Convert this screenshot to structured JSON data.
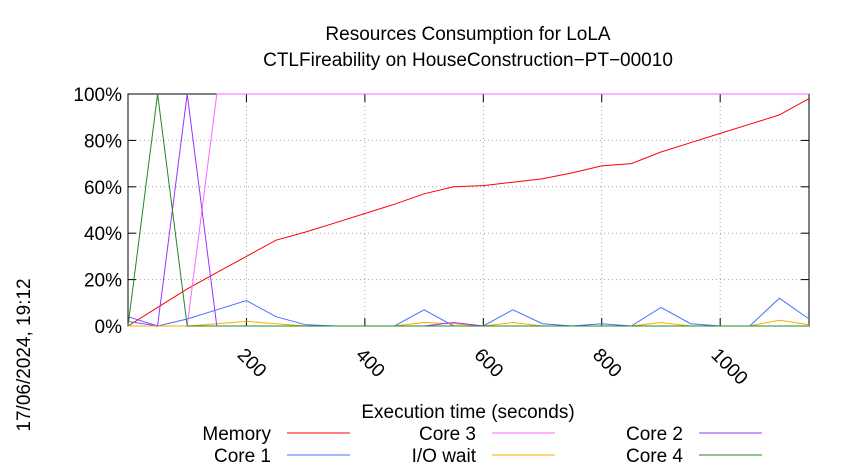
{
  "chart_data": {
    "type": "line",
    "title": "Resources Consumption for LoLA",
    "subtitle": "CTLFireability on HouseConstruction−PT−00010",
    "xlabel": "Execution time (seconds)",
    "ylabel": "",
    "side_label": "17/06/2024, 19:12",
    "xlim": [
      0,
      1150
    ],
    "ylim": [
      0,
      100
    ],
    "x_ticks": [
      200,
      400,
      600,
      800,
      1000
    ],
    "y_ticks": [
      0,
      20,
      40,
      60,
      80,
      100
    ],
    "y_tick_labels": [
      "0%",
      "20%",
      "40%",
      "60%",
      "80%",
      "100%"
    ],
    "grid": true,
    "legend_position": "bottom",
    "series": [
      {
        "name": "Memory",
        "color": "#ff0000",
        "points": [
          [
            0,
            0
          ],
          [
            50,
            8
          ],
          [
            100,
            16
          ],
          [
            150,
            23
          ],
          [
            200,
            30
          ],
          [
            250,
            37
          ],
          [
            300,
            40.5
          ],
          [
            350,
            44.5
          ],
          [
            400,
            48.5
          ],
          [
            450,
            52.5
          ],
          [
            500,
            57
          ],
          [
            550,
            60
          ],
          [
            600,
            60.5
          ],
          [
            650,
            62
          ],
          [
            700,
            63.5
          ],
          [
            750,
            66
          ],
          [
            800,
            69
          ],
          [
            850,
            70
          ],
          [
            900,
            75
          ],
          [
            950,
            79
          ],
          [
            1000,
            83
          ],
          [
            1050,
            87
          ],
          [
            1100,
            91
          ],
          [
            1150,
            98
          ]
        ]
      },
      {
        "name": "Core 1",
        "color": "#4472ff",
        "points": [
          [
            0,
            2
          ],
          [
            50,
            0
          ],
          [
            100,
            3
          ],
          [
            150,
            7
          ],
          [
            200,
            11
          ],
          [
            250,
            4
          ],
          [
            300,
            0.5
          ],
          [
            350,
            0
          ],
          [
            400,
            0
          ],
          [
            450,
            0
          ],
          [
            500,
            7
          ],
          [
            550,
            0
          ],
          [
            600,
            0
          ],
          [
            650,
            7
          ],
          [
            700,
            1
          ],
          [
            750,
            0
          ],
          [
            800,
            1
          ],
          [
            850,
            0
          ],
          [
            900,
            8
          ],
          [
            950,
            1
          ],
          [
            1000,
            0
          ],
          [
            1050,
            0
          ],
          [
            1100,
            12
          ],
          [
            1150,
            3
          ]
        ]
      },
      {
        "name": "Core 3",
        "color": "#ff66ff",
        "points": [
          [
            0,
            0
          ],
          [
            50,
            0
          ],
          [
            100,
            0
          ],
          [
            150,
            100
          ],
          [
            200,
            100
          ],
          [
            250,
            100
          ],
          [
            300,
            100
          ],
          [
            350,
            100
          ],
          [
            400,
            100
          ],
          [
            450,
            100
          ],
          [
            500,
            100
          ],
          [
            550,
            100
          ],
          [
            600,
            100
          ],
          [
            650,
            100
          ],
          [
            700,
            100
          ],
          [
            750,
            100
          ],
          [
            800,
            100
          ],
          [
            850,
            100
          ],
          [
            900,
            100
          ],
          [
            950,
            100
          ],
          [
            1000,
            100
          ],
          [
            1050,
            100
          ],
          [
            1100,
            100
          ],
          [
            1150,
            100
          ]
        ]
      },
      {
        "name": "I/O wait",
        "color": "#ffaa00",
        "points": [
          [
            0,
            0
          ],
          [
            50,
            0
          ],
          [
            100,
            0
          ],
          [
            150,
            1
          ],
          [
            200,
            2
          ],
          [
            250,
            1
          ],
          [
            300,
            0
          ],
          [
            350,
            0
          ],
          [
            400,
            0
          ],
          [
            450,
            0
          ],
          [
            500,
            1.5
          ],
          [
            550,
            1
          ],
          [
            600,
            0
          ],
          [
            650,
            1.5
          ],
          [
            700,
            0
          ],
          [
            750,
            0
          ],
          [
            800,
            0
          ],
          [
            850,
            0
          ],
          [
            900,
            1.5
          ],
          [
            950,
            0
          ],
          [
            1000,
            0
          ],
          [
            1050,
            0
          ],
          [
            1100,
            2.5
          ],
          [
            1150,
            0.5
          ]
        ]
      },
      {
        "name": "Core 2",
        "color": "#9933ff",
        "points": [
          [
            0,
            4
          ],
          [
            50,
            0
          ],
          [
            100,
            100
          ],
          [
            150,
            0
          ],
          [
            200,
            0
          ],
          [
            250,
            0
          ],
          [
            300,
            0
          ],
          [
            350,
            0
          ],
          [
            400,
            0
          ],
          [
            450,
            0
          ],
          [
            500,
            0
          ],
          [
            550,
            1.5
          ],
          [
            600,
            0
          ],
          [
            650,
            0
          ],
          [
            700,
            0
          ],
          [
            750,
            0
          ],
          [
            800,
            0
          ],
          [
            850,
            0
          ],
          [
            900,
            0
          ],
          [
            950,
            0
          ],
          [
            1000,
            0
          ],
          [
            1050,
            0
          ],
          [
            1100,
            0
          ],
          [
            1150,
            0
          ]
        ]
      },
      {
        "name": "Core 4",
        "color": "#228822",
        "points": [
          [
            0,
            0
          ],
          [
            50,
            100
          ],
          [
            100,
            0
          ],
          [
            150,
            0
          ],
          [
            200,
            0
          ],
          [
            250,
            0
          ],
          [
            300,
            0
          ],
          [
            350,
            0
          ],
          [
            400,
            0
          ],
          [
            450,
            0
          ],
          [
            500,
            0
          ],
          [
            550,
            0
          ],
          [
            600,
            0
          ],
          [
            650,
            0
          ],
          [
            700,
            0
          ],
          [
            750,
            0
          ],
          [
            800,
            0
          ],
          [
            850,
            0
          ],
          [
            900,
            0
          ],
          [
            950,
            0
          ],
          [
            1000,
            0
          ],
          [
            1050,
            0
          ],
          [
            1100,
            0
          ],
          [
            1150,
            0
          ]
        ]
      }
    ]
  }
}
